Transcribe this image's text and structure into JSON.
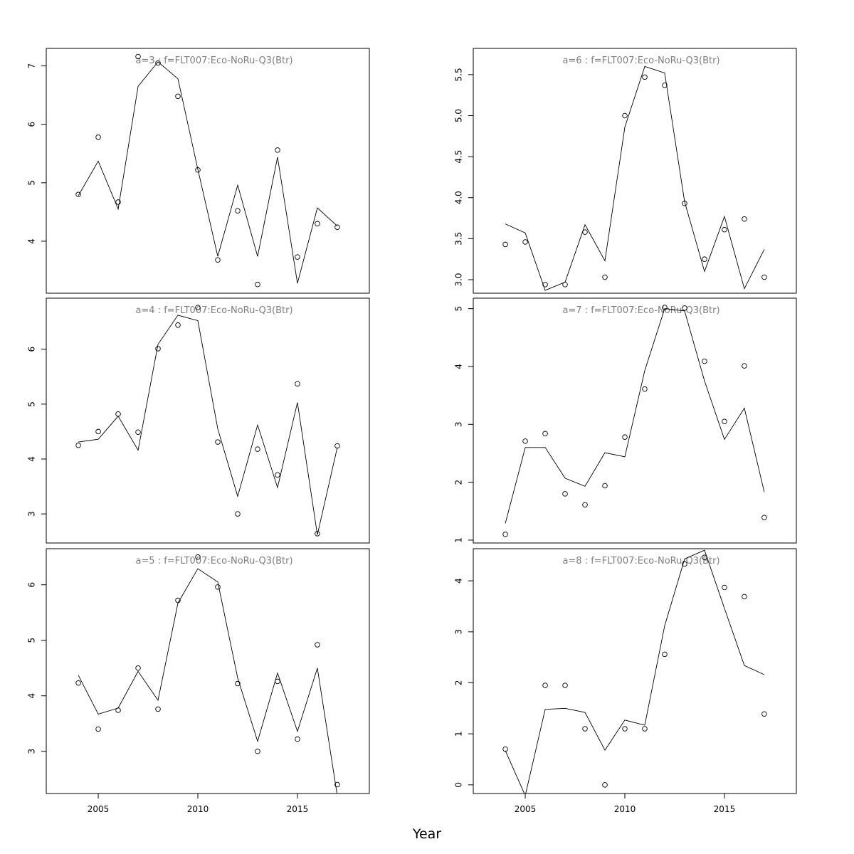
{
  "xlabel": "Year",
  "chart_data": [
    {
      "type": "line",
      "title": "a=3  :  f=FLT007:Eco-NoRu-Q3(Btr)",
      "x": [
        2004,
        2005,
        2006,
        2007,
        2008,
        2009,
        2010,
        2011,
        2012,
        2013,
        2014,
        2015,
        2016,
        2017
      ],
      "series": [
        {
          "style": "points",
          "color": "#000000",
          "values": [
            4.8,
            5.78,
            4.67,
            7.16,
            7.05,
            6.48,
            5.22,
            3.68,
            4.52,
            3.26,
            5.56,
            3.73,
            4.3,
            4.24
          ]
        },
        {
          "style": "line",
          "color": "#000000",
          "values": [
            4.78,
            5.37,
            4.55,
            6.65,
            7.07,
            6.78,
            5.23,
            3.74,
            4.96,
            3.74,
            5.44,
            3.28,
            4.57,
            4.26
          ]
        }
      ],
      "xlim": [
        2002.39,
        2018.61
      ],
      "ylim": [
        3.11,
        7.3
      ],
      "yticks": [
        4,
        5,
        6,
        7
      ]
    },
    {
      "type": "line",
      "title": "a=4  :  f=FLT007:Eco-NoRu-Q3(Btr)",
      "x": [
        2004,
        2005,
        2006,
        2007,
        2008,
        2009,
        2010,
        2011,
        2012,
        2013,
        2014,
        2015,
        2016,
        2017
      ],
      "series": [
        {
          "style": "points",
          "color": "#000000",
          "values": [
            4.25,
            4.5,
            4.82,
            4.49,
            6.01,
            6.44,
            6.76,
            4.31,
            3.0,
            4.18,
            3.71,
            5.37,
            2.64,
            4.24
          ]
        },
        {
          "style": "line",
          "color": "#000000",
          "values": [
            4.31,
            4.36,
            4.78,
            4.16,
            6.09,
            6.62,
            6.52,
            4.55,
            3.32,
            4.62,
            3.48,
            5.03,
            2.62,
            4.21
          ]
        }
      ],
      "xlim": [
        2002.39,
        2018.61
      ],
      "ylim": [
        2.47,
        6.93
      ],
      "yticks": [
        3,
        4,
        5,
        6
      ]
    },
    {
      "type": "line",
      "title": "a=5  :  f=FLT007:Eco-NoRu-Q3(Btr)",
      "x": [
        2004,
        2005,
        2006,
        2007,
        2008,
        2009,
        2010,
        2011,
        2012,
        2013,
        2014,
        2015,
        2016,
        2017
      ],
      "series": [
        {
          "style": "points",
          "color": "#000000",
          "values": [
            4.23,
            3.4,
            3.74,
            4.5,
            3.76,
            5.72,
            6.5,
            5.96,
            4.22,
            3.0,
            4.26,
            3.22,
            4.92,
            2.4
          ]
        },
        {
          "style": "line",
          "color": "#000000",
          "values": [
            4.37,
            3.67,
            3.78,
            4.44,
            3.92,
            5.67,
            6.29,
            6.05,
            4.32,
            3.18,
            4.41,
            3.36,
            4.5,
            2.2
          ]
        }
      ],
      "xlim": [
        2002.39,
        2018.61
      ],
      "ylim": [
        2.24,
        6.65
      ],
      "yticks": [
        3,
        4,
        5,
        6
      ],
      "xticks": [
        2005,
        2010,
        2015
      ]
    },
    {
      "type": "line",
      "title": "a=6  :  f=FLT007:Eco-NoRu-Q3(Btr)",
      "x": [
        2004,
        2005,
        2006,
        2007,
        2008,
        2009,
        2010,
        2011,
        2012,
        2013,
        2014,
        2015,
        2016,
        2017
      ],
      "series": [
        {
          "style": "points",
          "color": "#000000",
          "values": [
            3.43,
            3.46,
            2.94,
            2.94,
            3.58,
            3.03,
            5.0,
            5.47,
            5.37,
            3.93,
            3.25,
            3.61,
            3.74,
            3.03
          ]
        },
        {
          "style": "line",
          "color": "#000000",
          "values": [
            3.68,
            3.57,
            2.87,
            2.97,
            3.67,
            3.23,
            4.86,
            5.6,
            5.52,
            3.95,
            3.1,
            3.77,
            2.89,
            3.37
          ]
        }
      ],
      "xlim": [
        2002.39,
        2018.61
      ],
      "ylim": [
        2.835,
        5.82
      ],
      "yticks": [
        {
          "value": 3,
          "label": "3.0"
        },
        3.5,
        {
          "value": 4,
          "label": "4.0"
        },
        4.5,
        {
          "value": 5,
          "label": "5.0"
        },
        5.5
      ]
    },
    {
      "type": "line",
      "title": "a=7  :  f=FLT007:Eco-NoRu-Q3(Btr)",
      "x": [
        2004,
        2005,
        2006,
        2007,
        2008,
        2009,
        2010,
        2011,
        2012,
        2013,
        2014,
        2015,
        2016,
        2017
      ],
      "series": [
        {
          "style": "points",
          "color": "#000000",
          "values": [
            1.1,
            2.71,
            2.84,
            1.8,
            1.61,
            1.94,
            2.78,
            3.61,
            5.02,
            5.01,
            4.09,
            3.05,
            4.01,
            1.39
          ]
        },
        {
          "style": "line",
          "color": "#000000",
          "values": [
            1.29,
            2.6,
            2.6,
            2.07,
            1.93,
            2.51,
            2.44,
            3.93,
            5.0,
            4.96,
            3.75,
            2.74,
            3.28,
            1.83
          ]
        }
      ],
      "xlim": [
        2002.39,
        2018.61
      ],
      "ylim": [
        0.95,
        5.18
      ],
      "yticks": [
        1,
        2,
        3,
        4,
        5
      ]
    },
    {
      "type": "line",
      "title": "a=8  :  f=FLT007:Eco-NoRu-Q3(Btr)",
      "x": [
        2004,
        2005,
        2006,
        2007,
        2008,
        2009,
        2010,
        2011,
        2012,
        2013,
        2014,
        2015,
        2016,
        2017
      ],
      "series": [
        {
          "style": "points",
          "color": "#000000",
          "values": [
            0.7,
            null,
            1.95,
            1.95,
            1.1,
            0.0,
            1.1,
            1.1,
            2.56,
            4.33,
            4.46,
            3.87,
            3.69,
            1.39
          ]
        },
        {
          "style": "line",
          "color": "#000000",
          "values": [
            0.67,
            -0.21,
            1.48,
            1.5,
            1.42,
            0.68,
            1.27,
            1.17,
            3.12,
            4.43,
            4.6,
            3.46,
            2.34,
            2.16
          ]
        }
      ],
      "xlim": [
        2002.39,
        2018.61
      ],
      "ylim": [
        -0.17,
        4.63
      ],
      "yticks": [
        0,
        1,
        2,
        3,
        4
      ],
      "xticks": [
        2005,
        2010,
        2015
      ]
    }
  ]
}
